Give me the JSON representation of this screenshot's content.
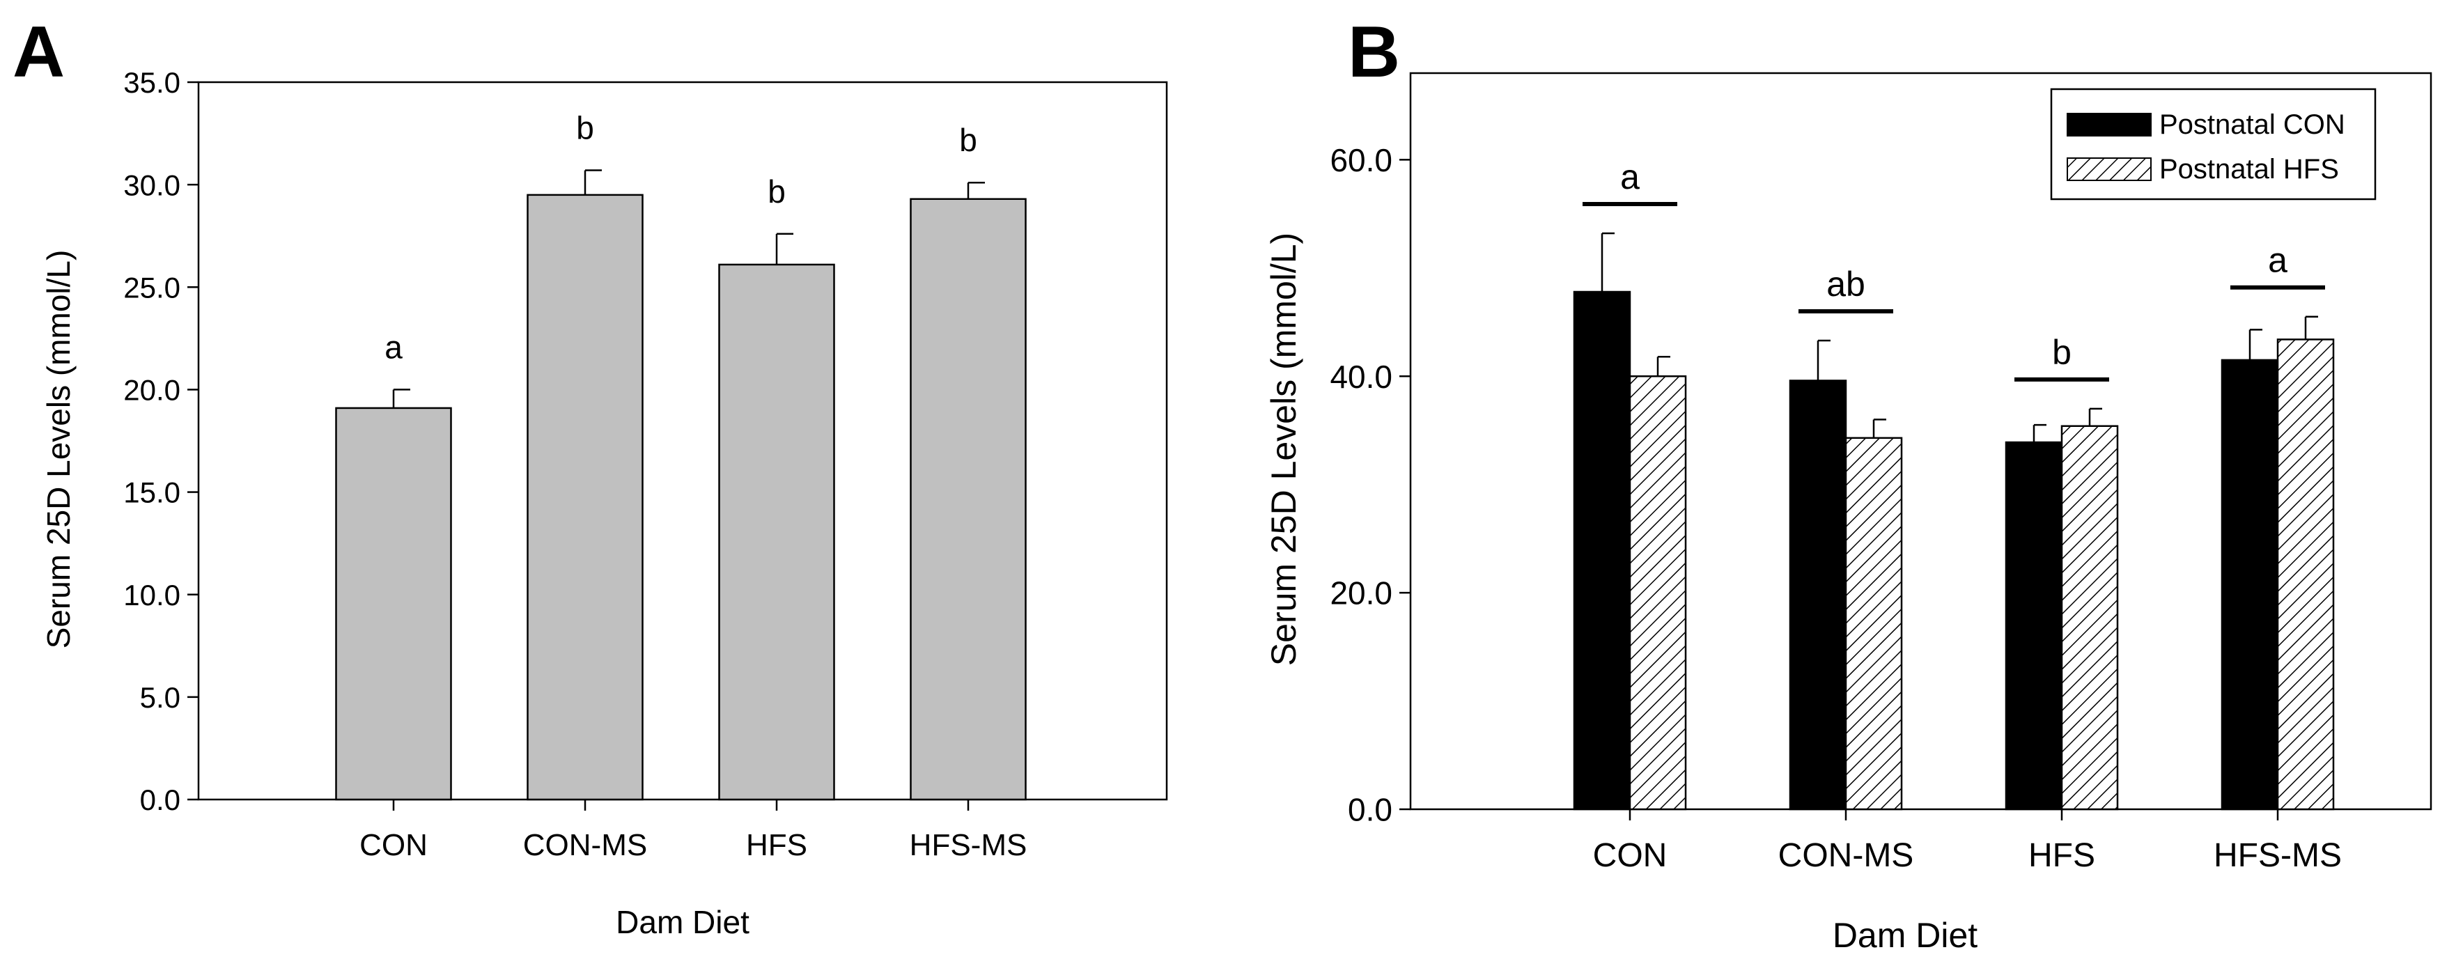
{
  "chart_data": [
    {
      "panel": "A",
      "type": "bar",
      "title": "",
      "xlabel": "Dam Diet",
      "ylabel": "Serum 25D Levels (mmol/L)",
      "ylim": [
        0,
        35
      ],
      "yticks": [
        "0.0",
        "5.0",
        "10.0",
        "15.0",
        "20.0",
        "25.0",
        "30.0",
        "35.0"
      ],
      "categories": [
        "CON",
        "CON-MS",
        "HFS",
        "HFS-MS"
      ],
      "series": [
        {
          "name": "Dam Diet",
          "color": "#c0c0c0",
          "pattern": "solid",
          "values": [
            19.1,
            29.5,
            26.1,
            29.3
          ],
          "errors": [
            0.9,
            1.2,
            1.5,
            0.8
          ]
        }
      ],
      "group_labels": [
        "a",
        "b",
        "b",
        "b"
      ],
      "grid": false
    },
    {
      "panel": "B",
      "type": "bar",
      "title": "",
      "xlabel": "Dam Diet",
      "ylabel": "Serum 25D Levels (mmol/L)",
      "ylim": [
        0,
        68
      ],
      "yticks": [
        "0.0",
        "20.0",
        "40.0",
        "60.0"
      ],
      "categories": [
        "CON",
        "CON-MS",
        "HFS",
        "HFS-MS"
      ],
      "series": [
        {
          "name": "Postnatal CON",
          "color": "#000000",
          "pattern": "solid",
          "values": [
            47.8,
            39.6,
            33.9,
            41.5
          ],
          "errors": [
            5.4,
            3.7,
            1.6,
            2.8
          ]
        },
        {
          "name": "Postnatal HFS",
          "color": "#ffffff",
          "pattern": "hatch",
          "values": [
            40.0,
            34.3,
            35.4,
            43.4
          ],
          "errors": [
            1.8,
            1.7,
            1.6,
            2.1
          ]
        }
      ],
      "group_labels": [
        "a",
        "ab",
        "b",
        "a"
      ],
      "legend_position": "top-right",
      "grid": false
    }
  ]
}
